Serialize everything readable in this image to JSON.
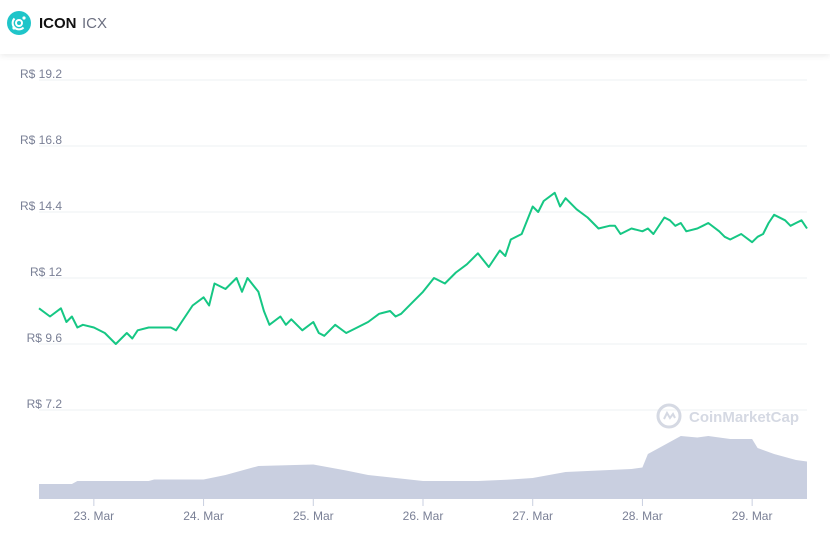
{
  "header": {
    "name": "ICON",
    "symbol": "ICX",
    "logo_icon": "icon-coin-logo",
    "logo_color": "#1fc5c9"
  },
  "watermark": {
    "text": "CoinMarketCap",
    "icon": "coinmarketcap-logo-icon"
  },
  "colors": {
    "price_line": "#16c784",
    "volume_fill": "#c9cfe0",
    "grid": "#eef0f3",
    "label": "#7a8096"
  },
  "chart_data": {
    "type": "line",
    "currency_prefix": "R$",
    "y_ticks": [
      {
        "value": 19.2,
        "label": "R$ 19.2"
      },
      {
        "value": 16.8,
        "label": "R$ 16.8"
      },
      {
        "value": 14.4,
        "label": "R$ 14.4"
      },
      {
        "value": 12,
        "label": "R$ 12"
      },
      {
        "value": 9.6,
        "label": "R$ 9.6"
      },
      {
        "value": 7.2,
        "label": "R$ 7.2"
      }
    ],
    "ylim": [
      7.2,
      19.2
    ],
    "grid": true,
    "x_ticks": [
      {
        "day": 23,
        "label": "23. Mar"
      },
      {
        "day": 24,
        "label": "24. Mar"
      },
      {
        "day": 25,
        "label": "25. Mar"
      },
      {
        "day": 26,
        "label": "26. Mar"
      },
      {
        "day": 27,
        "label": "27. Mar"
      },
      {
        "day": 28,
        "label": "28. Mar"
      },
      {
        "day": 29,
        "label": "29. Mar"
      }
    ],
    "xlim": [
      22.5,
      29.5
    ],
    "series": [
      {
        "type": "line",
        "x": [
          22.5,
          22.6,
          22.7,
          22.75,
          22.8,
          22.85,
          22.9,
          23.0,
          23.1,
          23.2,
          23.3,
          23.35,
          23.4,
          23.5,
          23.6,
          23.7,
          23.75,
          23.8,
          23.9,
          24.0,
          24.05,
          24.1,
          24.2,
          24.3,
          24.35,
          24.4,
          24.5,
          24.55,
          24.6,
          24.7,
          24.75,
          24.8,
          24.9,
          25.0,
          25.05,
          25.1,
          25.2,
          25.3,
          25.4,
          25.5,
          25.6,
          25.7,
          25.75,
          25.8,
          25.9,
          26.0,
          26.1,
          26.2,
          26.3,
          26.4,
          26.5,
          26.6,
          26.7,
          26.75,
          26.8,
          26.9,
          27.0,
          27.05,
          27.1,
          27.2,
          27.25,
          27.3,
          27.4,
          27.5,
          27.6,
          27.7,
          27.75,
          27.8,
          27.9,
          28.0,
          28.05,
          28.1,
          28.2,
          28.25,
          28.3,
          28.35,
          28.4,
          28.5,
          28.55,
          28.6,
          28.7,
          28.75,
          28.8,
          28.9,
          29.0,
          29.05,
          29.1,
          29.15,
          29.2,
          29.3,
          29.35,
          29.4,
          29.45,
          29.5
        ],
        "values": [
          10.9,
          10.6,
          10.9,
          10.4,
          10.6,
          10.2,
          10.3,
          10.2,
          10.0,
          9.6,
          10.0,
          9.8,
          10.1,
          10.2,
          10.2,
          10.2,
          10.1,
          10.4,
          11.0,
          11.3,
          11.0,
          11.8,
          11.6,
          12.0,
          11.5,
          12.0,
          11.5,
          10.8,
          10.3,
          10.6,
          10.3,
          10.5,
          10.1,
          10.4,
          10.0,
          9.9,
          10.3,
          10.0,
          10.2,
          10.4,
          10.7,
          10.8,
          10.6,
          10.7,
          11.1,
          11.5,
          12.0,
          11.8,
          12.2,
          12.5,
          12.9,
          12.4,
          13.0,
          12.8,
          13.4,
          13.6,
          14.6,
          14.4,
          14.8,
          15.1,
          14.6,
          14.9,
          14.5,
          14.2,
          13.8,
          13.9,
          13.9,
          13.6,
          13.8,
          13.7,
          13.8,
          13.6,
          14.2,
          14.1,
          13.9,
          14.0,
          13.7,
          13.8,
          13.9,
          14.0,
          13.7,
          13.5,
          13.4,
          13.6,
          13.3,
          13.5,
          13.6,
          14.0,
          14.3,
          14.1,
          13.9,
          14.0,
          14.1,
          13.8
        ]
      },
      {
        "type": "area",
        "name": "volume",
        "x": [
          22.5,
          22.8,
          22.85,
          23.5,
          23.55,
          24.0,
          24.2,
          24.5,
          25.0,
          25.3,
          25.5,
          26.0,
          26.5,
          26.8,
          27.0,
          27.3,
          27.6,
          27.9,
          28.0,
          28.05,
          28.2,
          28.35,
          28.5,
          28.6,
          28.8,
          29.0,
          29.05,
          29.2,
          29.4,
          29.5
        ],
        "values": [
          1.0,
          1.0,
          1.2,
          1.2,
          1.3,
          1.3,
          1.6,
          2.2,
          2.3,
          1.9,
          1.6,
          1.2,
          1.2,
          1.3,
          1.4,
          1.8,
          1.9,
          2.0,
          2.1,
          3.0,
          3.6,
          4.2,
          4.1,
          4.2,
          4.0,
          4.0,
          3.4,
          3.0,
          2.6,
          2.5
        ]
      }
    ]
  }
}
